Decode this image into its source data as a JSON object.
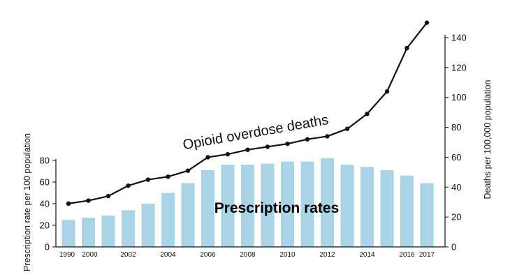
{
  "chart_data": {
    "type": "bar",
    "title": "",
    "x": [
      "1990",
      "2000",
      "2001",
      "2002",
      "2003",
      "2004",
      "2005",
      "2006",
      "2007",
      "2008",
      "2009",
      "2010",
      "2011",
      "2012",
      "2013",
      "2014",
      "2015",
      "2016",
      "2017"
    ],
    "x_tick_labels": [
      "1990",
      "2000",
      "2002",
      "2004",
      "2006",
      "2008",
      "2010",
      "2012",
      "2014",
      "2016",
      "2017"
    ],
    "series": [
      {
        "name": "Prescription rates",
        "type": "bar",
        "axis": "left",
        "color": "#a8d4e6",
        "values": [
          25,
          27,
          29,
          34,
          40,
          50,
          59,
          71,
          76,
          76,
          77,
          79,
          79,
          82,
          76,
          74,
          71,
          66,
          59
        ]
      },
      {
        "name": "Opioid overdose deaths",
        "type": "line",
        "axis": "right",
        "color": "#111111",
        "values": [
          29,
          31,
          34,
          41,
          45,
          47,
          51,
          60,
          62,
          65,
          67,
          69,
          72,
          74,
          79,
          89,
          104,
          133,
          150
        ]
      }
    ],
    "y_left": {
      "label": "Prescription rate per 100 population",
      "range": [
        0,
        80
      ],
      "ticks": [
        "0",
        "20",
        "40",
        "60",
        "80"
      ]
    },
    "y_right": {
      "label": "Deaths per 100,000 population",
      "range": [
        0,
        140
      ],
      "ticks": [
        "0",
        "20",
        "40",
        "60",
        "80",
        "100",
        "120",
        "140"
      ]
    },
    "annotations": {
      "line_label": "Opioid overdose deaths",
      "bar_label": "Prescription rates"
    },
    "legend": "none",
    "grid": false
  }
}
